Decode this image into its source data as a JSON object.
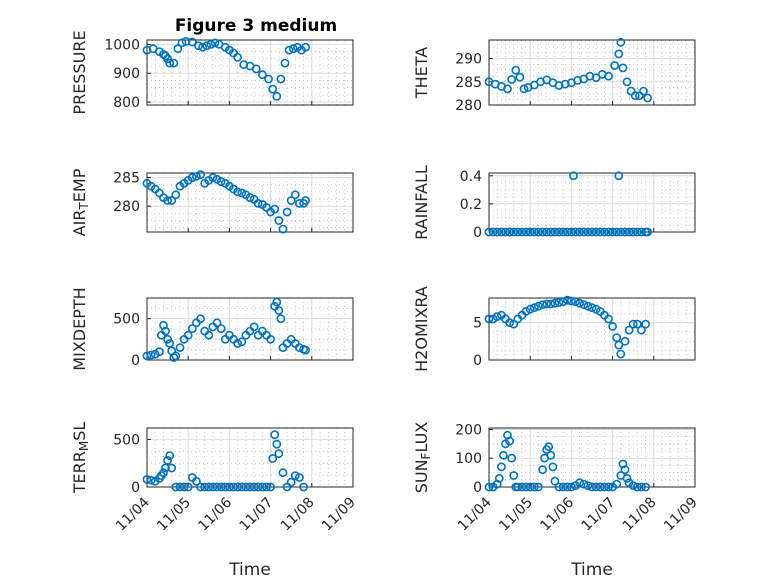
{
  "figure_title": "Figure 3 medium",
  "colors": {
    "marker": "#0072BD",
    "axis": "#262626"
  },
  "x_label": "Time",
  "x_tick_labels": [
    "11/04",
    "11/05",
    "11/06",
    "11/07",
    "11/08",
    "11/09"
  ],
  "chart_data": [
    {
      "type": "scatter",
      "title": "Figure 3 medium",
      "ylabel": "PRESSURE",
      "ylabel_parts": [
        {
          "t": "PRESSURE",
          "s": "n"
        }
      ],
      "xlim": [
        0,
        5
      ],
      "ylim": [
        790,
        1015
      ],
      "yticks": [
        800,
        900,
        1000
      ],
      "grid": true,
      "marker": "circle",
      "x": [
        0,
        0.15,
        0.3,
        0.4,
        0.45,
        0.5,
        0.55,
        0.65,
        0.75,
        0.85,
        0.95,
        1.1,
        1.25,
        1.35,
        1.45,
        1.55,
        1.65,
        1.75,
        1.9,
        2.0,
        2.1,
        2.2,
        2.35,
        2.5,
        2.65,
        2.8,
        2.95,
        3.05,
        3.15,
        3.25,
        3.35,
        3.45,
        3.55,
        3.65,
        3.75,
        3.85
      ],
      "y": [
        980,
        985,
        975,
        965,
        960,
        950,
        935,
        935,
        985,
        1005,
        1010,
        1008,
        995,
        990,
        995,
        1000,
        1005,
        1000,
        990,
        980,
        970,
        955,
        930,
        925,
        915,
        895,
        880,
        845,
        820,
        880,
        935,
        980,
        985,
        990,
        980,
        990
      ]
    },
    {
      "type": "scatter",
      "ylabel": "THETA",
      "ylabel_parts": [
        {
          "t": "THETA",
          "s": "n"
        }
      ],
      "xlim": [
        0,
        5
      ],
      "ylim": [
        280,
        294
      ],
      "yticks": [
        280,
        285,
        290
      ],
      "grid": true,
      "marker": "circle",
      "x": [
        0,
        0.15,
        0.3,
        0.45,
        0.55,
        0.65,
        0.75,
        0.85,
        0.95,
        1.1,
        1.25,
        1.4,
        1.55,
        1.7,
        1.85,
        2.0,
        2.15,
        2.3,
        2.45,
        2.6,
        2.75,
        2.9,
        3.05,
        3.15,
        3.2,
        3.25,
        3.35,
        3.45,
        3.55,
        3.65,
        3.75,
        3.85
      ],
      "y": [
        285,
        284.5,
        284,
        283.5,
        285.5,
        287.5,
        286,
        283.5,
        283.8,
        284.3,
        285,
        285.4,
        284.8,
        284.2,
        284.5,
        284.8,
        285.3,
        285.6,
        286.2,
        285.9,
        286.6,
        286.2,
        288.5,
        291,
        293.5,
        288,
        285,
        283,
        282,
        282,
        283,
        281.5
      ]
    },
    {
      "type": "scatter",
      "ylabel": "AIR_TEMP",
      "ylabel_parts": [
        {
          "t": "AIR",
          "s": "n"
        },
        {
          "t": "T",
          "s": "sub"
        },
        {
          "t": "EMP",
          "s": "n"
        }
      ],
      "xlim": [
        0,
        5
      ],
      "ylim": [
        275.5,
        285.8
      ],
      "yticks": [
        280,
        285
      ],
      "grid": true,
      "marker": "circle",
      "x": [
        0,
        0.1,
        0.2,
        0.3,
        0.4,
        0.5,
        0.6,
        0.7,
        0.8,
        0.9,
        1.0,
        1.1,
        1.2,
        1.3,
        1.4,
        1.5,
        1.6,
        1.7,
        1.8,
        1.9,
        2.0,
        2.1,
        2.2,
        2.3,
        2.4,
        2.5,
        2.6,
        2.7,
        2.8,
        2.9,
        3.0,
        3.1,
        3.2,
        3.3,
        3.4,
        3.5,
        3.6,
        3.7,
        3.8,
        3.85
      ],
      "y": [
        284,
        283.5,
        283,
        282.3,
        281.5,
        281,
        281,
        282,
        283.5,
        284,
        284.5,
        285,
        285.2,
        285.5,
        284,
        284.5,
        285,
        284.7,
        284.3,
        284,
        283.5,
        283,
        282.5,
        282.3,
        282,
        281.5,
        281.2,
        280.5,
        280.3,
        279.8,
        279,
        279.5,
        277.5,
        276,
        279,
        281,
        282,
        280.5,
        280.5,
        281
      ]
    },
    {
      "type": "scatter",
      "ylabel": "RAINFALL",
      "ylabel_parts": [
        {
          "t": "RAINFALL",
          "s": "n"
        }
      ],
      "xlim": [
        0,
        5
      ],
      "ylim": [
        0,
        0.42
      ],
      "yticks": [
        0,
        0.2,
        0.4
      ],
      "grid": true,
      "marker": "circle",
      "x": [
        0,
        0.1,
        0.2,
        0.3,
        0.4,
        0.5,
        0.6,
        0.7,
        0.8,
        0.9,
        1.0,
        1.1,
        1.2,
        1.3,
        1.4,
        1.5,
        1.6,
        1.7,
        1.8,
        1.9,
        2.0,
        2.05,
        2.1,
        2.2,
        2.3,
        2.4,
        2.5,
        2.6,
        2.7,
        2.8,
        2.9,
        3.0,
        3.1,
        3.15,
        3.2,
        3.3,
        3.4,
        3.5,
        3.6,
        3.7,
        3.8,
        3.85
      ],
      "y": [
        0,
        0,
        0,
        0,
        0,
        0,
        0,
        0,
        0,
        0,
        0,
        0,
        0,
        0,
        0,
        0,
        0,
        0,
        0,
        0,
        0,
        0.4,
        0,
        0,
        0,
        0,
        0,
        0,
        0,
        0,
        0,
        0,
        0,
        0.4,
        0,
        0,
        0,
        0,
        0,
        0,
        0,
        0
      ]
    },
    {
      "type": "scatter",
      "ylabel": "MIXDEPTH",
      "ylabel_parts": [
        {
          "t": "MIXDEPTH",
          "s": "n"
        }
      ],
      "xlim": [
        0,
        5
      ],
      "ylim": [
        0,
        750
      ],
      "yticks": [
        0,
        500
      ],
      "grid": true,
      "marker": "circle",
      "x": [
        0,
        0.1,
        0.2,
        0.3,
        0.35,
        0.4,
        0.45,
        0.5,
        0.55,
        0.6,
        0.65,
        0.7,
        0.8,
        0.9,
        1.0,
        1.1,
        1.2,
        1.3,
        1.4,
        1.5,
        1.6,
        1.7,
        1.8,
        1.9,
        2.0,
        2.1,
        2.2,
        2.3,
        2.4,
        2.5,
        2.6,
        2.7,
        2.8,
        2.9,
        3.0,
        3.1,
        3.15,
        3.2,
        3.25,
        3.3,
        3.4,
        3.5,
        3.6,
        3.7,
        3.8,
        3.85
      ],
      "y": [
        50,
        60,
        70,
        100,
        300,
        420,
        350,
        250,
        200,
        110,
        30,
        50,
        150,
        250,
        300,
        380,
        450,
        500,
        350,
        300,
        400,
        450,
        380,
        250,
        300,
        250,
        200,
        220,
        300,
        350,
        400,
        300,
        350,
        300,
        250,
        650,
        700,
        600,
        500,
        150,
        200,
        250,
        200,
        150,
        130,
        120
      ]
    },
    {
      "type": "scatter",
      "ylabel": "H2OMIXRA",
      "ylabel_parts": [
        {
          "t": "H2OMIXRA",
          "s": "n"
        }
      ],
      "xlim": [
        0,
        5
      ],
      "ylim": [
        0,
        8.3
      ],
      "yticks": [
        0,
        5
      ],
      "grid": true,
      "marker": "circle",
      "x": [
        0,
        0.1,
        0.2,
        0.3,
        0.4,
        0.5,
        0.6,
        0.7,
        0.8,
        0.9,
        1.0,
        1.1,
        1.2,
        1.3,
        1.4,
        1.5,
        1.6,
        1.7,
        1.8,
        1.9,
        2.0,
        2.1,
        2.2,
        2.3,
        2.4,
        2.5,
        2.6,
        2.7,
        2.8,
        2.9,
        3.0,
        3.1,
        3.15,
        3.2,
        3.3,
        3.4,
        3.5,
        3.6,
        3.7,
        3.8
      ],
      "y": [
        5.5,
        5.5,
        5.8,
        6,
        5.5,
        5,
        4.8,
        5.5,
        6,
        6.5,
        6.8,
        7,
        7.2,
        7.4,
        7.5,
        7.5,
        7.6,
        7.7,
        7.8,
        8,
        7.9,
        7.8,
        7.6,
        7.4,
        7.2,
        7,
        6.8,
        6.5,
        6,
        5.5,
        4.5,
        3,
        2,
        0.8,
        2.5,
        4,
        4.8,
        4.8,
        4,
        4.8
      ]
    },
    {
      "type": "scatter",
      "ylabel": "TERR_MSL",
      "ylabel_parts": [
        {
          "t": "TERR",
          "s": "n"
        },
        {
          "t": "M",
          "s": "sub"
        },
        {
          "t": "SL",
          "s": "n"
        }
      ],
      "xlim": [
        0,
        5
      ],
      "ylim": [
        0,
        620
      ],
      "yticks": [
        0,
        500
      ],
      "grid": true,
      "marker": "circle",
      "x": [
        0,
        0.1,
        0.2,
        0.3,
        0.35,
        0.4,
        0.45,
        0.5,
        0.55,
        0.6,
        0.7,
        0.8,
        0.9,
        1.0,
        1.1,
        1.2,
        1.3,
        1.4,
        1.5,
        1.6,
        1.7,
        1.8,
        1.9,
        2.0,
        2.1,
        2.2,
        2.3,
        2.4,
        2.5,
        2.6,
        2.7,
        2.8,
        2.9,
        3.0,
        3.05,
        3.1,
        3.15,
        3.2,
        3.3,
        3.4,
        3.5,
        3.6,
        3.7,
        3.8
      ],
      "y": [
        80,
        70,
        60,
        90,
        120,
        150,
        200,
        280,
        330,
        200,
        0,
        0,
        0,
        0,
        100,
        60,
        0,
        0,
        0,
        0,
        0,
        0,
        0,
        0,
        0,
        0,
        0,
        0,
        0,
        0,
        0,
        0,
        0,
        0,
        300,
        550,
        450,
        350,
        150,
        0,
        50,
        120,
        100,
        0
      ]
    },
    {
      "type": "scatter",
      "ylabel": "SUN_FLUX",
      "ylabel_parts": [
        {
          "t": "SUN",
          "s": "n"
        },
        {
          "t": "F",
          "s": "sub"
        },
        {
          "t": "LUX",
          "s": "n"
        }
      ],
      "xlim": [
        0,
        5
      ],
      "ylim": [
        0,
        205
      ],
      "yticks": [
        0,
        100,
        200
      ],
      "grid": true,
      "marker": "circle",
      "x": [
        0,
        0.1,
        0.2,
        0.25,
        0.3,
        0.35,
        0.4,
        0.45,
        0.5,
        0.55,
        0.6,
        0.65,
        0.7,
        0.8,
        0.9,
        1.0,
        1.1,
        1.2,
        1.3,
        1.35,
        1.4,
        1.45,
        1.5,
        1.55,
        1.6,
        1.7,
        1.8,
        1.9,
        2.0,
        2.1,
        2.2,
        2.3,
        2.4,
        2.5,
        2.6,
        2.7,
        2.8,
        2.9,
        3.0,
        3.1,
        3.2,
        3.25,
        3.3,
        3.35,
        3.4,
        3.5,
        3.6,
        3.7,
        3.8
      ],
      "y": [
        0,
        0,
        10,
        30,
        70,
        110,
        150,
        180,
        160,
        100,
        40,
        0,
        0,
        0,
        0,
        0,
        0,
        0,
        60,
        100,
        130,
        140,
        110,
        70,
        20,
        0,
        0,
        0,
        0,
        5,
        15,
        10,
        5,
        0,
        0,
        0,
        0,
        0,
        0,
        10,
        40,
        80,
        60,
        30,
        15,
        5,
        0,
        0,
        0
      ]
    }
  ]
}
